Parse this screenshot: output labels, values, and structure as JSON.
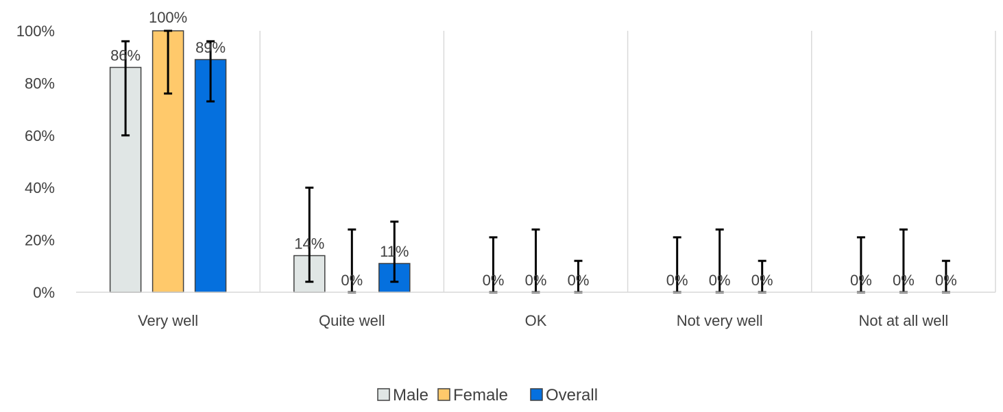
{
  "chart_data": {
    "type": "bar",
    "categories": [
      "Very well",
      "Quite well",
      "OK",
      "Not very well",
      "Not at all well"
    ],
    "series": [
      {
        "name": "Male",
        "color": "#e0e6e5",
        "stroke": "#404040",
        "values": [
          86,
          14,
          0,
          0,
          0
        ],
        "labels": [
          "86%",
          "14%",
          "0%",
          "0%",
          "0%"
        ],
        "error_low": [
          60,
          4,
          0,
          0,
          0
        ],
        "error_high": [
          96,
          40,
          21,
          21,
          21
        ]
      },
      {
        "name": "Female",
        "color": "#ffc96b",
        "stroke": "#404040",
        "values": [
          100,
          0,
          0,
          0,
          0
        ],
        "labels": [
          "100%",
          "0%",
          "0%",
          "0%",
          "0%"
        ],
        "error_low": [
          76,
          0,
          0,
          0,
          0
        ],
        "error_high": [
          100,
          24,
          24,
          24,
          24
        ]
      },
      {
        "name": "Overall",
        "color": "#0570de",
        "stroke": "#404040",
        "values": [
          89,
          11,
          0,
          0,
          0
        ],
        "labels": [
          "89%",
          "11%",
          "0%",
          "0%",
          "0%"
        ],
        "error_low": [
          73,
          4,
          0,
          0,
          0
        ],
        "error_high": [
          96,
          27,
          12,
          12,
          12
        ]
      }
    ],
    "y_ticks": [
      "0%",
      "20%",
      "40%",
      "60%",
      "80%",
      "100%"
    ],
    "ylim": [
      0,
      100
    ],
    "title": "",
    "xlabel": "",
    "ylabel": "",
    "grid": "vertical category separators",
    "legend_position": "bottom"
  }
}
